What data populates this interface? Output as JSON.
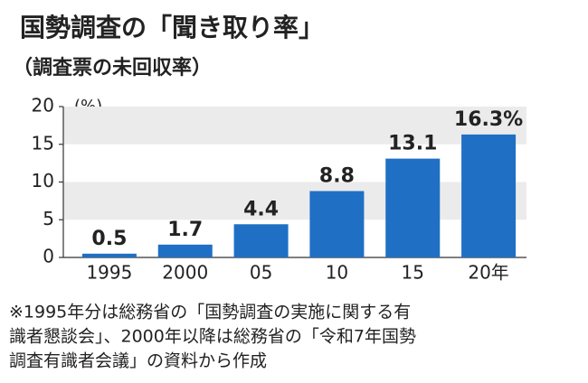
{
  "chart_data": {
    "type": "bar",
    "title": "国勢調査の「聞き取り率」",
    "subtitle": "（調査票の未回収率）",
    "y_label": "(%)",
    "categories": [
      "1995",
      "2000",
      "05",
      "10",
      "15",
      "20年"
    ],
    "values": [
      0.5,
      1.7,
      4.4,
      8.8,
      13.1,
      16.3
    ],
    "value_labels": [
      "0.5",
      "1.7",
      "4.4",
      "8.8",
      "13.1",
      "16.3%"
    ],
    "color": "#1f6fc5",
    "ylim": [
      0,
      20
    ],
    "yticks": [
      0,
      5,
      10,
      15,
      20
    ],
    "grid": true
  },
  "note": [
    "※1995年分は総務省の「国勢調査の実施に関する有",
    "識者懇談会」、2000年以降は総務省の「令和7年国勢",
    "調査有識者会議」の資料から作成"
  ]
}
